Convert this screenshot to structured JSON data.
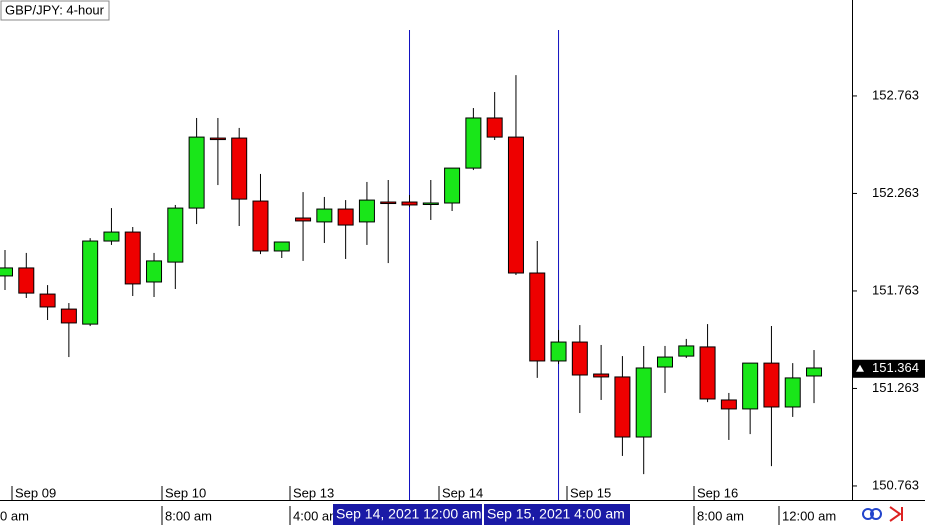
{
  "chart_data": {
    "type": "candlestick",
    "title": "GBP/JPY: 4-hour",
    "categories": [
      null,
      null,
      null,
      null,
      null,
      null,
      null,
      null,
      null,
      null,
      null,
      null,
      null,
      null,
      null,
      null,
      null,
      null,
      null,
      null,
      null,
      null,
      null,
      null,
      null,
      null,
      null,
      null,
      null,
      null,
      null,
      null,
      null,
      null,
      null,
      null,
      null,
      null,
      null
    ],
    "open": [
      151.84,
      151.881,
      151.747,
      151.67,
      151.593,
      152.019,
      152.065,
      151.809,
      151.911,
      152.188,
      152.547,
      152.547,
      152.224,
      151.968,
      152.137,
      152.117,
      152.183,
      152.117,
      152.219,
      152.219,
      152.209,
      152.214,
      152.393,
      152.65,
      152.552,
      151.855,
      151.404,
      151.501,
      151.337,
      151.322,
      151.014,
      151.373,
      151.429,
      151.476,
      151.204,
      151.158,
      151.393,
      151.168,
      151.327
    ],
    "high": [
      151.973,
      151.958,
      151.793,
      151.701,
      152.034,
      152.188,
      152.091,
      151.958,
      152.204,
      152.65,
      152.65,
      152.599,
      152.363,
      152.014,
      152.27,
      152.245,
      152.229,
      152.322,
      152.332,
      152.255,
      152.332,
      152.393,
      152.701,
      152.783,
      152.87,
      152.019,
      151.563,
      151.588,
      151.486,
      151.429,
      151.481,
      151.481,
      151.517,
      151.593,
      151.24,
      151.393,
      151.583,
      151.393,
      151.46
    ],
    "low": [
      151.768,
      151.727,
      151.614,
      151.424,
      151.583,
      151.999,
      151.737,
      151.732,
      151.773,
      152.106,
      152.306,
      152.096,
      151.952,
      151.932,
      151.917,
      152.009,
      151.927,
      151.999,
      151.906,
      152.193,
      152.127,
      152.173,
      152.383,
      152.537,
      151.845,
      151.317,
      151.388,
      151.137,
      151.204,
      150.917,
      150.824,
      151.24,
      151.419,
      151.193,
      150.999,
      151.029,
      150.865,
      151.117,
      151.188
    ],
    "close": [
      151.881,
      151.752,
      151.681,
      151.599,
      152.019,
      152.065,
      151.799,
      151.917,
      152.188,
      152.552,
      152.542,
      152.234,
      151.968,
      152.014,
      152.122,
      152.183,
      152.101,
      152.229,
      152.214,
      152.204,
      152.214,
      152.393,
      152.65,
      152.552,
      151.855,
      151.404,
      151.501,
      151.332,
      151.322,
      151.014,
      151.368,
      151.424,
      151.481,
      151.209,
      151.158,
      151.393,
      151.168,
      151.317,
      151.368
    ],
    "up_color": "#19e619",
    "down_color": "#ee0000",
    "ylim": [
      150.691,
      153.255
    ],
    "yticks": [
      150.763,
      151.263,
      151.763,
      152.263,
      152.763
    ],
    "last_price": 151.364,
    "x_labels": [
      "Sep 09",
      "Sep 10",
      "Sep 13",
      "Sep 14",
      "Sep 15",
      "Sep 16",
      "0 am",
      "8:00 am",
      "4:00 am",
      "8:00 am",
      "12:00 am"
    ],
    "cursor_labels": [
      "Sep 14, 2021 12:00 am",
      "Sep 15, 2021 4:00 am"
    ]
  }
}
